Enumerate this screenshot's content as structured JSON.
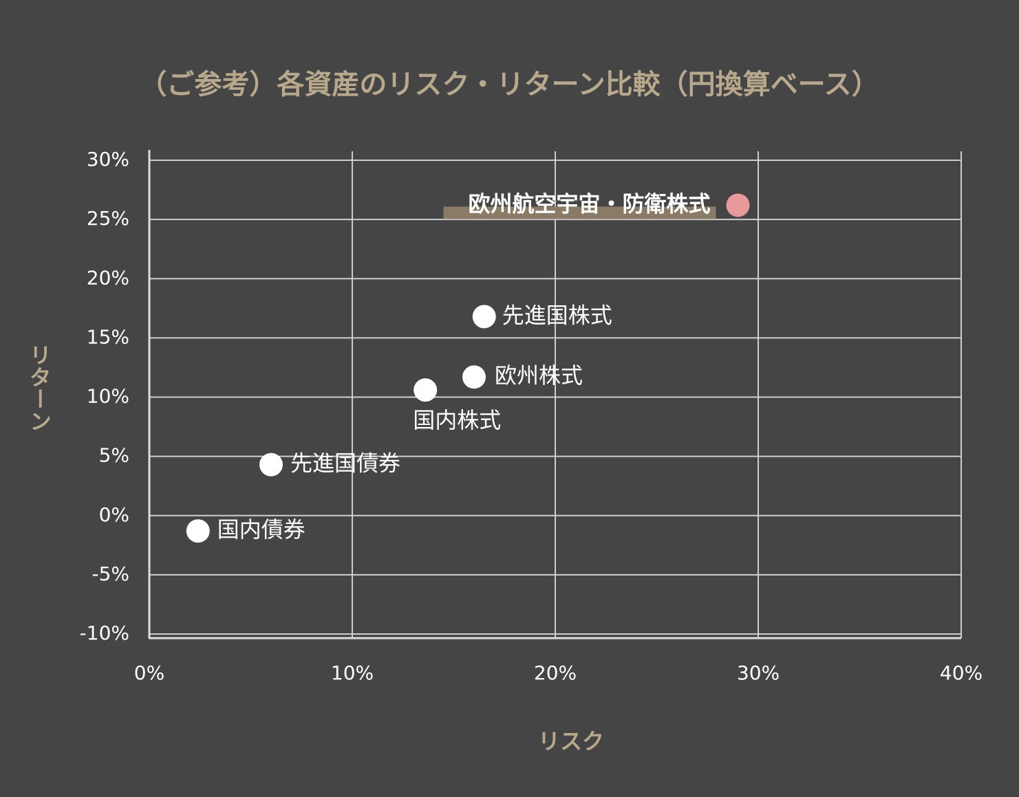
{
  "chart_data": {
    "type": "scatter",
    "title": "（ご参考）各資産のリスク・リターン比較（円換算ベース）",
    "x_label": "リスク",
    "y_label": "リターン",
    "labels": [
      "欧州航空宇宙・防衛株式",
      "先進国株式",
      "欧州株式",
      "国内株式",
      "先進国債券",
      "国内債券"
    ],
    "x": [
      29.0,
      16.5,
      16.0,
      13.6,
      6.0,
      2.4
    ],
    "y": [
      26.2,
      16.8,
      11.7,
      10.6,
      4.3,
      -1.3
    ],
    "colors": [
      "#e8999a",
      "#ffffff",
      "#ffffff",
      "#ffffff",
      "#ffffff",
      "#ffffff"
    ],
    "xlim": [
      0,
      40
    ],
    "ylim": [
      -10,
      30
    ],
    "xticks": [
      {
        "value": 0,
        "label": "0%"
      },
      {
        "value": 10,
        "label": "10%"
      },
      {
        "value": 20,
        "label": "20%"
      },
      {
        "value": 30,
        "label": "30%"
      },
      {
        "value": 40,
        "label": "40%"
      }
    ],
    "yticks": [
      {
        "value": -10,
        "label": "-10%"
      },
      {
        "value": -5,
        "label": "-5%"
      },
      {
        "value": 0,
        "label": "0%"
      },
      {
        "value": 5,
        "label": "5%"
      },
      {
        "value": 10,
        "label": "10%"
      },
      {
        "value": 15,
        "label": "15%"
      },
      {
        "value": 20,
        "label": "20%"
      },
      {
        "value": 25,
        "label": "25%"
      },
      {
        "value": 30,
        "label": "30%"
      }
    ],
    "grid": true
  }
}
